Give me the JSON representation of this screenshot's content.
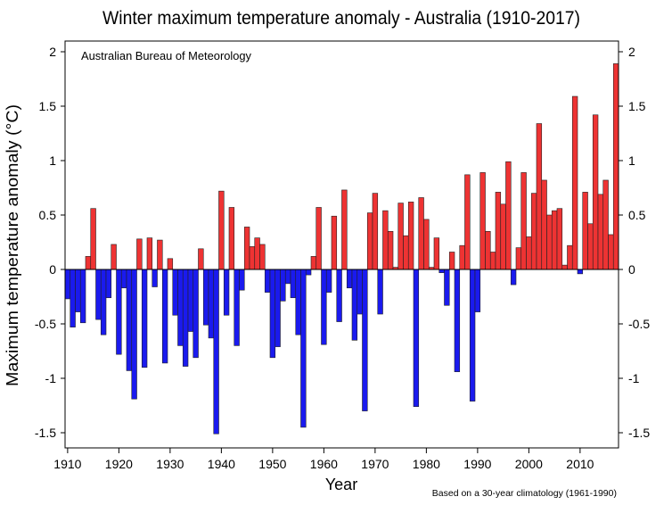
{
  "chart_data": {
    "type": "bar",
    "title": "Winter maximum temperature anomaly - Australia (1910-2017)",
    "source_label": "Australian Bureau of Meteorology",
    "footnote": "Based on a 30-year climatology (1961-1990)",
    "xlabel": "Year",
    "ylabel": "Maximum temperature anomaly (°C)",
    "ylim": [
      -1.75,
      2.05
    ],
    "xlim": [
      1909.5,
      2017.5
    ],
    "yticks": [
      2,
      1.5,
      1,
      0.5,
      0,
      -0.5,
      -1,
      -1.5
    ],
    "ytick_labels": [
      "2",
      "1.5",
      "1",
      "0.5",
      "0",
      "-0.5",
      "-1",
      "-1.5"
    ],
    "xticks": [
      1910,
      1920,
      1930,
      1940,
      1950,
      1960,
      1970,
      1980,
      1990,
      2000,
      2010
    ],
    "xtick_labels": [
      "1910",
      "1920",
      "1930",
      "1940",
      "1950",
      "1960",
      "1970",
      "1980",
      "1990",
      "2000",
      "2010"
    ],
    "grid": false,
    "colors": {
      "positive": "#ee3333",
      "negative": "#1a1aee",
      "edge": "#222222"
    },
    "x_start": 1910,
    "values": [
      -0.27,
      -0.53,
      -0.39,
      -0.49,
      0.12,
      0.56,
      -0.46,
      -0.6,
      -0.26,
      0.23,
      -0.78,
      -0.17,
      -0.93,
      -1.19,
      0.28,
      -0.9,
      0.29,
      -0.16,
      0.27,
      -0.86,
      0.1,
      -0.42,
      -0.7,
      -0.89,
      -0.57,
      -0.81,
      0.19,
      -0.51,
      -0.63,
      -1.51,
      0.72,
      -0.42,
      0.57,
      -0.7,
      -0.19,
      0.39,
      0.21,
      0.29,
      0.23,
      -0.21,
      -0.81,
      -0.71,
      -0.29,
      -0.13,
      -0.26,
      -0.6,
      -1.45,
      -0.05,
      0.12,
      0.57,
      -0.69,
      -0.21,
      0.49,
      -0.48,
      0.73,
      -0.17,
      -0.65,
      -0.41,
      -1.3,
      0.52,
      0.7,
      -0.41,
      0.54,
      0.35,
      0.02,
      0.61,
      0.31,
      0.62,
      -1.26,
      0.66,
      0.46,
      0.02,
      0.29,
      -0.03,
      -0.33,
      0.16,
      -0.94,
      0.22,
      0.87,
      -1.21,
      -0.39,
      0.89,
      0.35,
      0.16,
      0.71,
      0.6,
      0.99,
      -0.14,
      0.2,
      0.89,
      0.3,
      0.7,
      1.34,
      0.82,
      0.5,
      0.54,
      0.56,
      0.04,
      0.22,
      1.59,
      -0.04,
      0.71,
      0.42,
      1.42,
      0.69,
      0.82,
      0.32,
      1.89
    ]
  }
}
